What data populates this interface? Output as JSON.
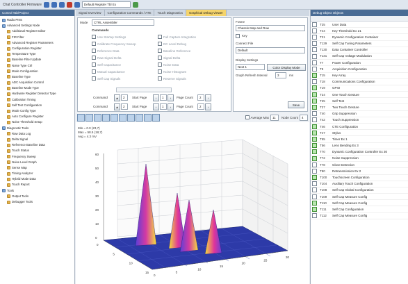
{
  "window": {
    "title": "Chat Controller Firmware",
    "filter": "Default Register Tbl Ex"
  },
  "left_pane": {
    "header": "Control Tab/Project",
    "items": [
      {
        "label": "Radio PINs",
        "group": true
      },
      {
        "label": "Advanced Settings Node",
        "group": true
      },
      {
        "label": "Additional Register Editor"
      },
      {
        "label": "FIR Filter"
      },
      {
        "label": "Advanced Register Parameters"
      },
      {
        "label": "Configuration Register"
      },
      {
        "label": "Temperature Type"
      },
      {
        "label": "Baseline Filter Update"
      },
      {
        "label": "Noise Type Ctrl"
      },
      {
        "label": "Mode Configuration"
      },
      {
        "label": "Baseline Type"
      },
      {
        "label": "ADC Acquisition Control"
      },
      {
        "label": "Baseline Mode Type"
      },
      {
        "label": "Hardware Register Detector Type"
      },
      {
        "label": "Calibration Timing"
      },
      {
        "label": "Self Test Configuration"
      },
      {
        "label": "Mode Config Type"
      },
      {
        "label": "Auto Configure Register"
      },
      {
        "label": "Noise Threshold Setup"
      },
      {
        "label": "Diagnostic Tools",
        "group": true
      },
      {
        "label": "Raw Data Log"
      },
      {
        "label": "Delta Signal"
      },
      {
        "label": "Reference Baseline Data"
      },
      {
        "label": "Touch Status"
      },
      {
        "label": "Frequency Sweep"
      },
      {
        "label": "Noise Level Graph"
      },
      {
        "label": "Sense Map"
      },
      {
        "label": "Timing Analyzer"
      },
      {
        "label": "Hybrid Mode Data"
      },
      {
        "label": "Touch Report"
      },
      {
        "label": "Tools",
        "group": true
      },
      {
        "label": "Output Tools"
      },
      {
        "label": "Debugger Tools"
      }
    ]
  },
  "center": {
    "tabs": [
      {
        "label": "Signal Overview",
        "active": false
      },
      {
        "label": "Configuration Commands / ATE",
        "active": false
      },
      {
        "label": "Touch Diagnostics",
        "active": false
      },
      {
        "label": "Graphical Debug Viewer",
        "active": true
      }
    ],
    "command_form": {
      "mode_label": "Mode",
      "mode_value": "CTRL Assembler",
      "commands_header": "Commands",
      "checks_left": [
        "Use Startup Settings",
        "Calibrate Frequency Sweep",
        "Reference Data",
        "Raw Signal Delta",
        "Self Capacitance",
        "Mutual Capacitance",
        "Self Cap Signals"
      ],
      "checks_right": [
        "Full Capture Integration",
        "DC Level Debug",
        "Baseline Reference",
        "Signal Delta",
        "Noise Data",
        "Noise Histogram",
        "Reserve Signals"
      ],
      "command_label": "Command",
      "start_page_label": "Start Page",
      "page_count_label": "Page Count",
      "command_value": "2",
      "start_page_value": "1",
      "page_count_value": "2"
    },
    "side_form": {
      "frame_label": "Frame",
      "frame_value": "Chassis Map and Row",
      "count_label": "Key",
      "connect_label": "Connect File",
      "connect_value": "Default",
      "display_label": "Display Settings",
      "zoom_value": "Next 1",
      "color_btn": "Color Display Mode",
      "refresh_label": "Graph Refresh Interval",
      "refresh_value": "3",
      "refresh_unit": "ms",
      "save_btn": "Save"
    },
    "plot_toolbar": {
      "average_label": "Average Max",
      "average_value": "11",
      "node_label": "Node Count",
      "node_value": "4"
    },
    "plot_info": [
      "Min = 0.0 (23,7)",
      "Max = 58.5 (18,7)",
      "Avg = 4.3 mV"
    ],
    "plot_axes": {
      "z_ticks": [
        "60",
        "50",
        "40",
        "30",
        "20",
        "10",
        "0"
      ],
      "x_ticks": [
        "0",
        "5",
        "10",
        "15",
        "20",
        "25",
        "30"
      ],
      "y_ticks": [
        "0",
        "5",
        "10",
        "15"
      ]
    }
  },
  "right_pane": {
    "header": "Debug Object Objects",
    "rows": [
      {
        "code": "T25",
        "name": "User Data",
        "checked": false
      },
      {
        "code": "T44",
        "name": "Key Threshold Ex 21",
        "checked": false
      },
      {
        "code": "T21",
        "name": "Dynamic Configuration Container",
        "checked": false
      },
      {
        "code": "T129",
        "name": "Self Cap Tuning Parameters",
        "checked": false
      },
      {
        "code": "T130",
        "name": "Data Container Controller",
        "checked": false
      },
      {
        "code": "T131",
        "name": "Self Cap Voltage Modulation",
        "checked": false
      },
      {
        "code": "T7",
        "name": "Power Configuration",
        "checked": false
      },
      {
        "code": "T8",
        "name": "Acquisition Configuration",
        "checked": false
      },
      {
        "code": "T15",
        "name": "Key Array",
        "checked": true
      },
      {
        "code": "T18",
        "name": "Communications Configuration",
        "checked": false
      },
      {
        "code": "T19",
        "name": "GPIO",
        "checked": true
      },
      {
        "code": "T24",
        "name": "One Touch Gesture",
        "checked": true
      },
      {
        "code": "T25",
        "name": "Self Test",
        "checked": true
      },
      {
        "code": "T27",
        "name": "Two Touch Gesture",
        "checked": true
      },
      {
        "code": "T40",
        "name": "Grip Suppression",
        "checked": false
      },
      {
        "code": "T42",
        "name": "Touch Suppression",
        "checked": false
      },
      {
        "code": "T46",
        "name": "CTE Configuration",
        "checked": true
      },
      {
        "code": "T47",
        "name": "Stylus",
        "checked": true
      },
      {
        "code": "T55",
        "name": "Timer Ex 1",
        "checked": true
      },
      {
        "code": "T56",
        "name": "Lens Bending Ex 3",
        "checked": true
      },
      {
        "code": "T70",
        "name": "Dynamic Configuration Controller Ex 30",
        "checked": true
      },
      {
        "code": "T72",
        "name": "Noise Suppression",
        "checked": true
      },
      {
        "code": "T78",
        "name": "Glove Detection",
        "checked": false
      },
      {
        "code": "T80",
        "name": "Retransmission Ex 2",
        "checked": false
      },
      {
        "code": "T100",
        "name": "Touchscreen Configuration",
        "checked": true
      },
      {
        "code": "T104",
        "name": "Auxiliary Touch Configuration",
        "checked": false
      },
      {
        "code": "T108",
        "name": "Self Cap Global Configuration",
        "checked": false
      },
      {
        "code": "T109",
        "name": "Self Cap Measure Config",
        "checked": false
      },
      {
        "code": "T110",
        "name": "Self Cap Measure Config",
        "checked": true
      },
      {
        "code": "T111",
        "name": "Self Cap Configuration",
        "checked": true
      },
      {
        "code": "T112",
        "name": "Self Cap Measure Config",
        "checked": false
      }
    ]
  }
}
